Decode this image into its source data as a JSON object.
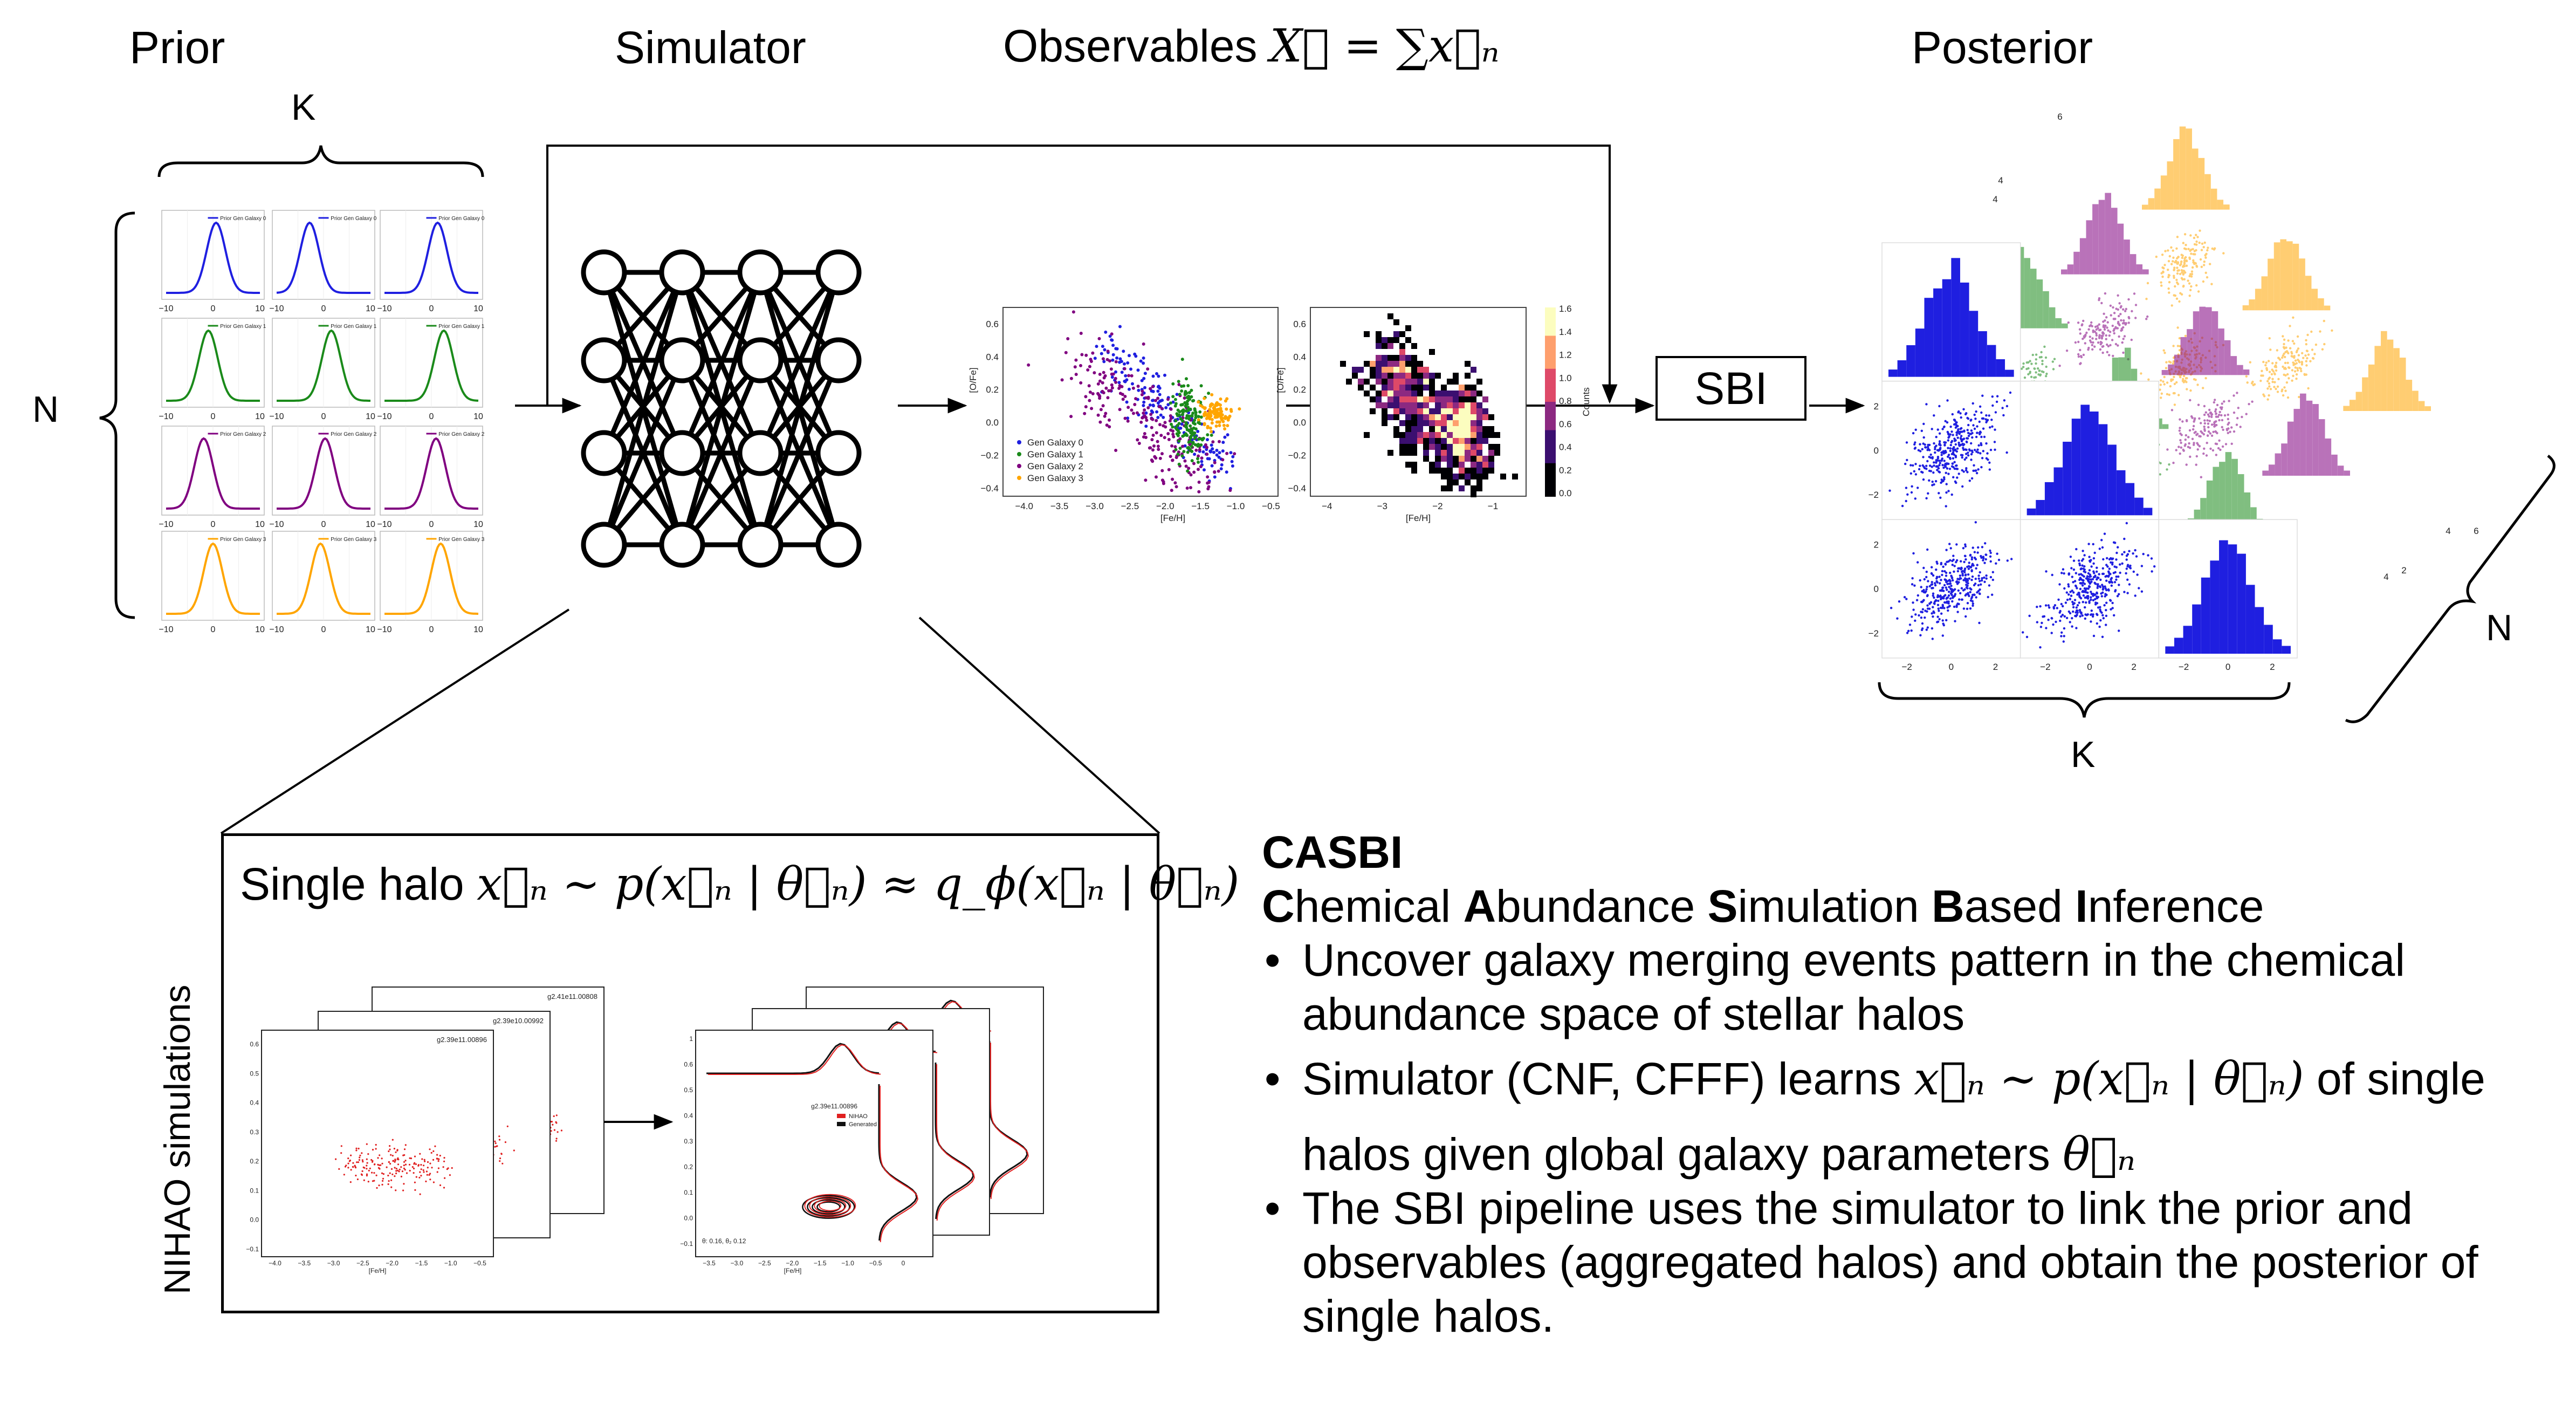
{
  "headers": {
    "prior": "Prior",
    "simulator": "Simulator",
    "observables_prefix": "Observables",
    "observables_formula": "X⃗ = ∑x⃗ₙ",
    "posterior": "Posterior"
  },
  "dims": {
    "k": "K",
    "n": "N"
  },
  "sbi_label": "SBI",
  "prior_plot": {
    "tick_left": "−10",
    "tick_mid": "0",
    "tick_right": "10",
    "legend": [
      "Prior Gen Galaxy 0",
      "Prior Gen Galaxy 1",
      "Prior Gen Galaxy 2",
      "Prior Gen Galaxy 3"
    ],
    "row_colors": [
      "#1f1fe0",
      "#1a8a1a",
      "#800080",
      "#ffa500"
    ]
  },
  "obs_scatter": {
    "xlabel": "[Fe/H]",
    "ylabel": "[O/Fe]",
    "xticks": [
      "−4.0",
      "−3.5",
      "−3.0",
      "−2.5",
      "−2.0",
      "−1.5",
      "−1.0",
      "−0.5"
    ],
    "yticks": [
      "0.6",
      "0.4",
      "0.2",
      "0.0",
      "−0.2",
      "−0.4"
    ],
    "legend": [
      "Gen Galaxy 0",
      "Gen Galaxy 1",
      "Gen Galaxy 2",
      "Gen Galaxy 3"
    ]
  },
  "obs_hist": {
    "xlabel": "[Fe/H]",
    "ylabel": "[O/Fe]",
    "xticks": [
      "−4",
      "−3",
      "−2",
      "−1"
    ],
    "yticks": [
      "0.6",
      "0.4",
      "0.2",
      "0.0",
      "−0.2",
      "−0.4"
    ],
    "cbar_label": "Counts",
    "cbar_ticks": [
      "1.6",
      "1.4",
      "1.2",
      "1.0",
      "0.8",
      "0.6",
      "0.4",
      "0.2",
      "0.0"
    ]
  },
  "posterior_plot": {
    "ticks": [
      "−2",
      "0",
      "2"
    ],
    "back_ticks": [
      "6",
      "4",
      "4",
      "2",
      "4",
      "4",
      "6"
    ]
  },
  "halo_box": {
    "title_prefix": "Single halo",
    "formula": "x⃗ₙ ∼ p(x⃗ₙ | θ⃗ₙ)  ≈ q_ϕ(x⃗ₙ | θ⃗ₙ)",
    "side_label": "NIHAO simulations",
    "left_ids": [
      "g2.39e11.00896",
      "g2.39e10.00992",
      "g2.41e11.00808"
    ],
    "right_id": "g2.39e11.00896",
    "right_legend": [
      "NIHAO",
      "Generated"
    ],
    "right_note": "θ: 0.16, θ₂ 0.12",
    "left_xticks": [
      "−4.0",
      "−3.5",
      "−3.0",
      "−2.5",
      "−2.0",
      "−1.5",
      "−1.0",
      "−0.5"
    ],
    "left_yticks": [
      "0.6",
      "0.5",
      "0.4",
      "0.3",
      "0.2",
      "0.1",
      "0.0",
      "−0.1"
    ],
    "right_xticks": [
      "−3.5",
      "−3.0",
      "−2.5",
      "−2.0",
      "−1.5",
      "−1.0",
      "−0.5",
      "0"
    ],
    "right_yticks": [
      "1",
      "0.6",
      "0.5",
      "0.4",
      "0.3",
      "0.2",
      "0.1",
      "0.0",
      "−0.1"
    ],
    "xlabel": "[Fe/H]"
  },
  "casbi": {
    "title": "CASBI",
    "subtitle_parts": [
      {
        "b": "C",
        "t": "hemical "
      },
      {
        "b": "A",
        "t": "bundance "
      },
      {
        "b": "S",
        "t": "imulation "
      },
      {
        "b": "B",
        "t": "ased "
      },
      {
        "b": "I",
        "t": "nference"
      }
    ],
    "bullet1": "Uncover galaxy merging events pattern in the chemical abundance space of stellar halos",
    "bullet2_a": "Simulator (CNF, CFFF) learns",
    "bullet2_formula": "x⃗ₙ ∼ p(x⃗ₙ | θ⃗ₙ)",
    "bullet2_b": "of single",
    "bullet2_c": "halos given global galaxy parameters",
    "bullet2_theta": "θ⃗ₙ",
    "bullet3": "The SBI pipeline uses the simulator to link the prior and observables (aggregated halos) and obtain the posterior of single halos."
  }
}
